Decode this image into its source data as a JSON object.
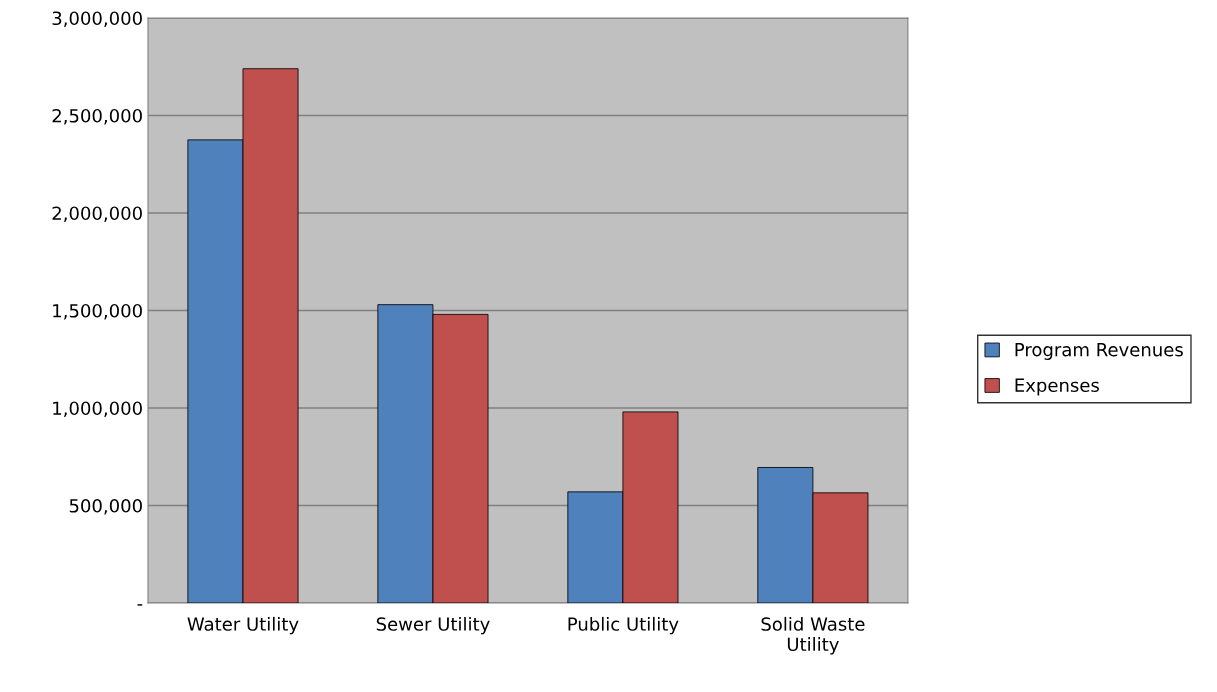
{
  "chart_data": {
    "type": "bar",
    "categories": [
      "Water Utility",
      "Sewer Utility",
      "Public Utility",
      "Solid Waste\nUtility"
    ],
    "series": [
      {
        "name": "Program Revenues",
        "color": "#4f81bd",
        "values": [
          2375000,
          1530000,
          570000,
          695000
        ]
      },
      {
        "name": "Expenses",
        "color": "#c0504d",
        "values": [
          2740000,
          1480000,
          980000,
          565000
        ]
      }
    ],
    "ylim": [
      0,
      3000000
    ],
    "yticks": [
      {
        "value": 0,
        "label": "-"
      },
      {
        "value": 500000,
        "label": "500,000"
      },
      {
        "value": 1000000,
        "label": "1,000,000"
      },
      {
        "value": 1500000,
        "label": "1,500,000"
      },
      {
        "value": 2000000,
        "label": "2,000,000"
      },
      {
        "value": 2500000,
        "label": "2,500,000"
      },
      {
        "value": 3000000,
        "label": "3,000,000"
      }
    ],
    "grid": "y",
    "legend": "right"
  }
}
